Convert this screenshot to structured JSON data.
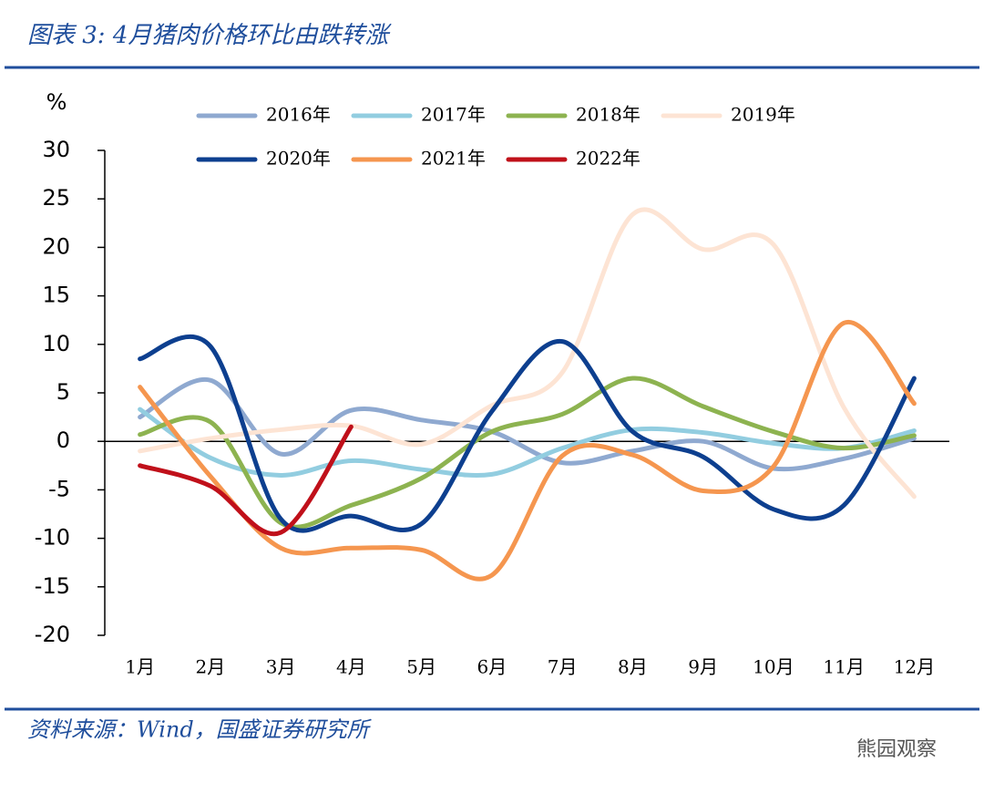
{
  "chart_data": {
    "type": "line",
    "title": "图表 3:  4月猪肉价格环比由跌转涨",
    "source": "资料来源：Wind，国盛证券研究所",
    "watermark": "熊园观察",
    "y_label": "%",
    "categories": [
      "1月",
      "2月",
      "3月",
      "4月",
      "5月",
      "6月",
      "7月",
      "8月",
      "9月",
      "10月",
      "11月",
      "12月"
    ],
    "ylim": [
      -20,
      30
    ],
    "yticks": [
      -20,
      -15,
      -10,
      -5,
      0,
      5,
      10,
      15,
      20,
      25,
      30
    ],
    "series": [
      {
        "name": "2016年",
        "color": "#8fa9d0",
        "values": [
          2.5,
          6.3,
          -1.3,
          3.2,
          2.2,
          1.0,
          -2.2,
          -1.0,
          0.0,
          -2.8,
          -1.8,
          0.3
        ]
      },
      {
        "name": "2017年",
        "color": "#92cde0",
        "values": [
          3.3,
          -1.7,
          -3.5,
          -2.0,
          -2.9,
          -3.4,
          -0.7,
          1.2,
          0.9,
          -0.2,
          -0.7,
          1.1
        ]
      },
      {
        "name": "2018年",
        "color": "#8db350",
        "values": [
          0.7,
          2.0,
          -8.4,
          -6.6,
          -3.8,
          1.0,
          2.8,
          6.5,
          3.6,
          1.0,
          -0.7,
          0.6
        ]
      },
      {
        "name": "2019年",
        "color": "#fde4d4",
        "values": [
          -1.0,
          0.3,
          1.2,
          1.6,
          -0.3,
          3.7,
          7.1,
          23.4,
          19.8,
          20.3,
          3.5,
          -5.7
        ]
      },
      {
        "name": "2020年",
        "color": "#0d3f8f",
        "values": [
          8.5,
          9.8,
          -8.0,
          -7.7,
          -8.5,
          3.1,
          10.3,
          1.0,
          -1.6,
          -7.0,
          -6.6,
          6.5
        ]
      },
      {
        "name": "2021年",
        "color": "#f5964f",
        "values": [
          5.6,
          -3.6,
          -11.0,
          -11.0,
          -11.2,
          -13.8,
          -1.5,
          -1.4,
          -5.1,
          -2.6,
          12.2,
          3.9
        ]
      },
      {
        "name": "2022年",
        "color": "#c0101a",
        "values": [
          -2.5,
          -4.6,
          -9.4,
          1.5,
          null,
          null,
          null,
          null,
          null,
          null,
          null,
          null
        ]
      }
    ]
  }
}
